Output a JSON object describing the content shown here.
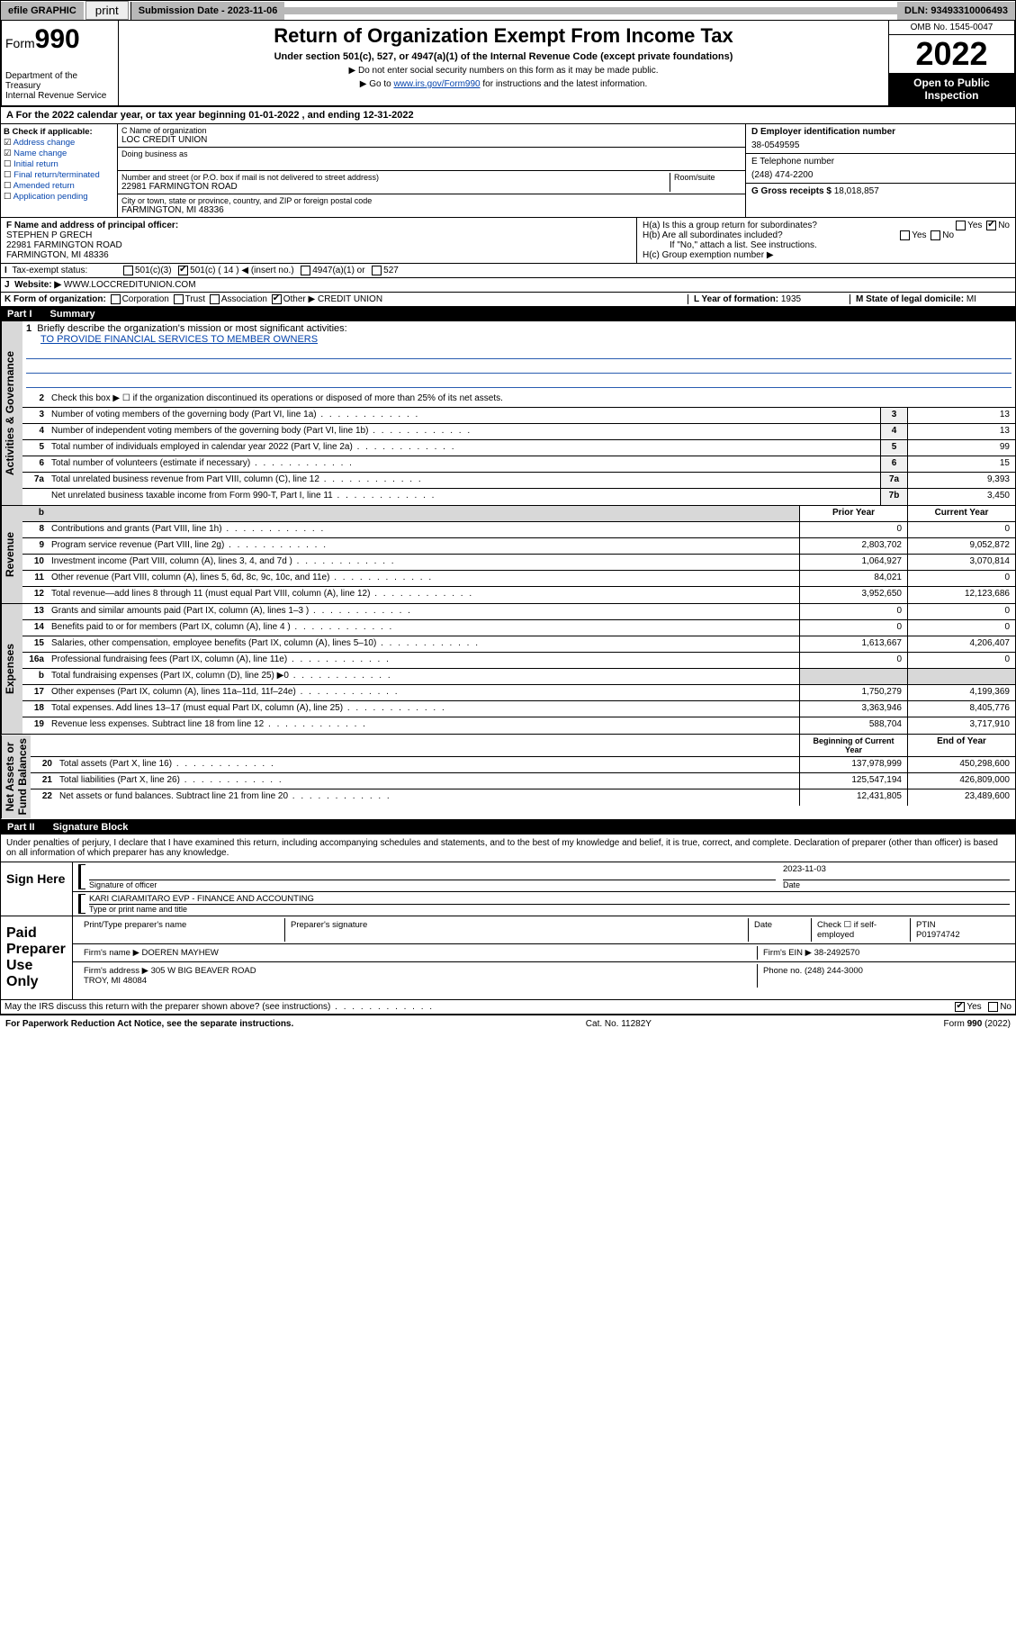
{
  "topbar": {
    "efile": "efile GRAPHIC",
    "print": "print",
    "subdate_lbl": "Submission Date - 2023-11-06",
    "dln": "DLN: 93493310006493"
  },
  "hdr": {
    "form": "Form",
    "num": "990",
    "title": "Return of Organization Exempt From Income Tax",
    "sub": "Under section 501(c), 527, or 4947(a)(1) of the Internal Revenue Code (except private foundations)",
    "note1": "▶ Do not enter social security numbers on this form as it may be made public.",
    "note2_pre": "▶ Go to ",
    "note2_link": "www.irs.gov/Form990",
    "note2_post": " for instructions and the latest information.",
    "dept": "Department of the Treasury\nInternal Revenue Service",
    "omb": "OMB No. 1545-0047",
    "year": "2022",
    "open": "Open to Public Inspection"
  },
  "A": {
    "text": "For the 2022 calendar year, or tax year beginning 01-01-2022   , and ending 12-31-2022"
  },
  "B": {
    "hdr": "B Check if applicable:",
    "items": [
      "Address change",
      "Name change",
      "Initial return",
      "Final return/terminated",
      "Amended return",
      "Application pending"
    ],
    "checked": [
      true,
      true,
      false,
      false,
      false,
      false
    ]
  },
  "C": {
    "name_lbl": "C Name of organization",
    "name": "LOC CREDIT UNION",
    "dba_lbl": "Doing business as",
    "addr_lbl": "Number and street (or P.O. box if mail is not delivered to street address)",
    "room_lbl": "Room/suite",
    "addr": "22981 FARMINGTON ROAD",
    "city_lbl": "City or town, state or province, country, and ZIP or foreign postal code",
    "city": "FARMINGTON, MI  48336"
  },
  "D": {
    "lbl": "D Employer identification number",
    "val": "38-0549595"
  },
  "E": {
    "lbl": "E Telephone number",
    "val": "(248) 474-2200"
  },
  "G": {
    "lbl": "G Gross receipts $",
    "val": "18,018,857"
  },
  "F": {
    "lbl": "F Name and address of principal officer:",
    "name": "STEPHEN P GRECH",
    "addr": "22981 FARMINGTON ROAD\nFARMINGTON, MI  48336"
  },
  "H": {
    "a": "H(a)  Is this a group return for subordinates?",
    "b": "H(b)  Are all subordinates included?",
    "b_note": "If \"No,\" attach a list. See instructions.",
    "c": "H(c)  Group exemption number ▶",
    "yes": "Yes",
    "no": "No"
  },
  "I": {
    "lbl": "Tax-exempt status:",
    "opts": [
      "501(c)(3)",
      "501(c) ( 14 ) ◀ (insert no.)",
      "4947(a)(1) or",
      "527"
    ],
    "checked": [
      false,
      true,
      false,
      false
    ]
  },
  "J": {
    "lbl": "Website: ▶",
    "val": "WWW.LOCCREDITUNION.COM"
  },
  "K": {
    "lbl": "K Form of organization:",
    "opts": [
      "Corporation",
      "Trust",
      "Association",
      "Other ▶"
    ],
    "other": "CREDIT UNION"
  },
  "L": {
    "lbl": "L Year of formation:",
    "val": "1935"
  },
  "M": {
    "lbl": "M State of legal domicile:",
    "val": "MI"
  },
  "part1": {
    "num": "Part I",
    "title": "Summary"
  },
  "sideLabels": {
    "ag": "Activities & Governance",
    "rev": "Revenue",
    "exp": "Expenses",
    "na": "Net Assets or\nFund Balances"
  },
  "summary": {
    "l1_lbl": "Briefly describe the organization's mission or most significant activities:",
    "l1_val": "TO PROVIDE FINANCIAL SERVICES TO MEMBER OWNERS",
    "l2": "Check this box ▶ ☐ if the organization discontinued its operations or disposed of more than 25% of its net assets.",
    "lines_ag": [
      {
        "n": "3",
        "t": "Number of voting members of the governing body (Part VI, line 1a)",
        "b": "3",
        "v": "13"
      },
      {
        "n": "4",
        "t": "Number of independent voting members of the governing body (Part VI, line 1b)",
        "b": "4",
        "v": "13"
      },
      {
        "n": "5",
        "t": "Total number of individuals employed in calendar year 2022 (Part V, line 2a)",
        "b": "5",
        "v": "99"
      },
      {
        "n": "6",
        "t": "Total number of volunteers (estimate if necessary)",
        "b": "6",
        "v": "15"
      },
      {
        "n": "7a",
        "t": "Total unrelated business revenue from Part VIII, column (C), line 12",
        "b": "7a",
        "v": "9,393"
      },
      {
        "n": "",
        "t": "Net unrelated business taxable income from Form 990-T, Part I, line 11",
        "b": "7b",
        "v": "3,450"
      }
    ],
    "col_prior": "Prior Year",
    "col_curr": "Current Year",
    "lines_rev": [
      {
        "n": "8",
        "t": "Contributions and grants (Part VIII, line 1h)",
        "p": "0",
        "c": "0"
      },
      {
        "n": "9",
        "t": "Program service revenue (Part VIII, line 2g)",
        "p": "2,803,702",
        "c": "9,052,872"
      },
      {
        "n": "10",
        "t": "Investment income (Part VIII, column (A), lines 3, 4, and 7d )",
        "p": "1,064,927",
        "c": "3,070,814"
      },
      {
        "n": "11",
        "t": "Other revenue (Part VIII, column (A), lines 5, 6d, 8c, 9c, 10c, and 11e)",
        "p": "84,021",
        "c": "0"
      },
      {
        "n": "12",
        "t": "Total revenue—add lines 8 through 11 (must equal Part VIII, column (A), line 12)",
        "p": "3,952,650",
        "c": "12,123,686"
      }
    ],
    "lines_exp": [
      {
        "n": "13",
        "t": "Grants and similar amounts paid (Part IX, column (A), lines 1–3 )",
        "p": "0",
        "c": "0"
      },
      {
        "n": "14",
        "t": "Benefits paid to or for members (Part IX, column (A), line 4 )",
        "p": "0",
        "c": "0"
      },
      {
        "n": "15",
        "t": "Salaries, other compensation, employee benefits (Part IX, column (A), lines 5–10)",
        "p": "1,613,667",
        "c": "4,206,407"
      },
      {
        "n": "16a",
        "t": "Professional fundraising fees (Part IX, column (A), line 11e)",
        "p": "0",
        "c": "0"
      },
      {
        "n": "b",
        "t": "Total fundraising expenses (Part IX, column (D), line 25) ▶0",
        "p": "",
        "c": "",
        "shade": true
      },
      {
        "n": "17",
        "t": "Other expenses (Part IX, column (A), lines 11a–11d, 11f–24e)",
        "p": "1,750,279",
        "c": "4,199,369"
      },
      {
        "n": "18",
        "t": "Total expenses. Add lines 13–17 (must equal Part IX, column (A), line 25)",
        "p": "3,363,946",
        "c": "8,405,776"
      },
      {
        "n": "19",
        "t": "Revenue less expenses. Subtract line 18 from line 12",
        "p": "588,704",
        "c": "3,717,910"
      }
    ],
    "col_beg": "Beginning of Current Year",
    "col_end": "End of Year",
    "lines_na": [
      {
        "n": "20",
        "t": "Total assets (Part X, line 16)",
        "p": "137,978,999",
        "c": "450,298,600"
      },
      {
        "n": "21",
        "t": "Total liabilities (Part X, line 26)",
        "p": "125,547,194",
        "c": "426,809,000"
      },
      {
        "n": "22",
        "t": "Net assets or fund balances. Subtract line 21 from line 20",
        "p": "12,431,805",
        "c": "23,489,600"
      }
    ]
  },
  "part2": {
    "num": "Part II",
    "title": "Signature Block"
  },
  "sig": {
    "decl": "Under penalties of perjury, I declare that I have examined this return, including accompanying schedules and statements, and to the best of my knowledge and belief, it is true, correct, and complete. Declaration of preparer (other than officer) is based on all information of which preparer has any knowledge.",
    "sign_here": "Sign Here",
    "sig_officer": "Signature of officer",
    "date_lbl": "Date",
    "date": "2023-11-03",
    "name": "KARI CIARAMITARO EVP - FINANCE AND ACCOUNTING",
    "name_lbl": "Type or print name and title",
    "paid": "Paid Preparer Use Only",
    "prep_name_lbl": "Print/Type preparer's name",
    "prep_sig_lbl": "Preparer's signature",
    "check_lbl": "Check ☐ if self-employed",
    "ptin_lbl": "PTIN",
    "ptin": "P01974742",
    "firm_name_lbl": "Firm's name   ▶",
    "firm_name": "DOEREN MAYHEW",
    "firm_ein_lbl": "Firm's EIN ▶",
    "firm_ein": "38-2492570",
    "firm_addr_lbl": "Firm's address ▶",
    "firm_addr": "305 W BIG BEAVER ROAD\nTROY, MI  48084",
    "phone_lbl": "Phone no.",
    "phone": "(248) 244-3000",
    "discuss": "May the IRS discuss this return with the preparer shown above? (see instructions)",
    "yes": "Yes",
    "no": "No"
  },
  "footer": {
    "left": "For Paperwork Reduction Act Notice, see the separate instructions.",
    "mid": "Cat. No. 11282Y",
    "right": "Form 990 (2022)"
  }
}
